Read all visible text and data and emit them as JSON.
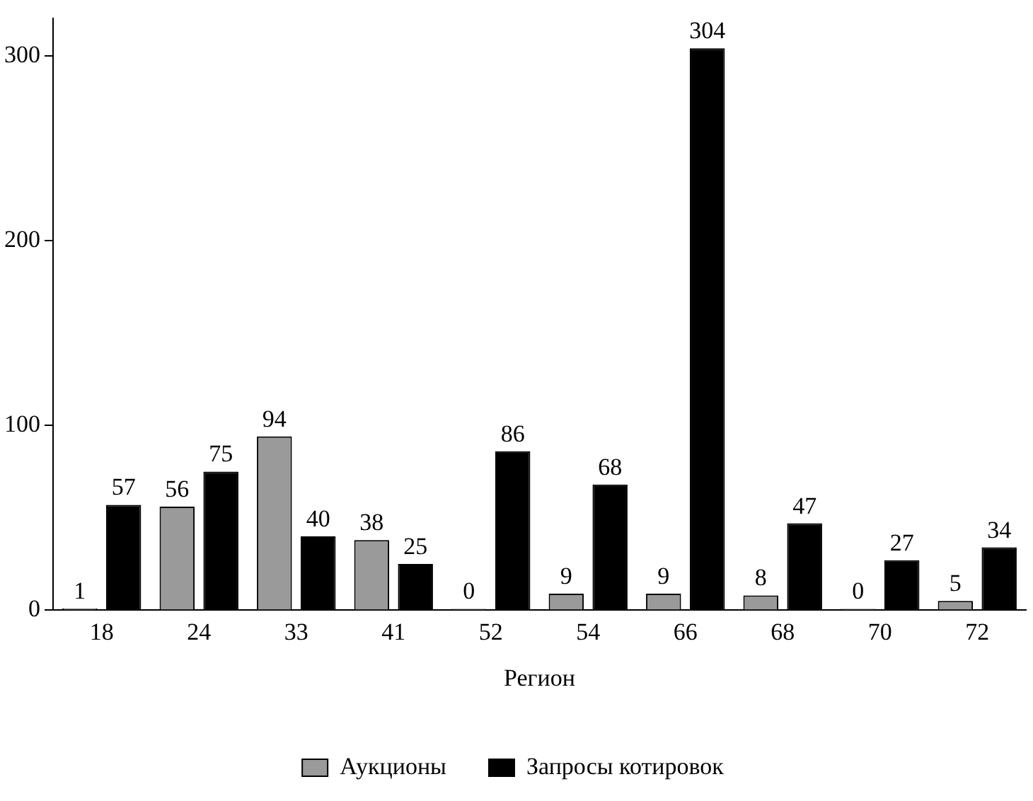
{
  "chart_data": {
    "type": "bar",
    "xlabel": "Регион",
    "categories": [
      "18",
      "24",
      "33",
      "41",
      "52",
      "54",
      "66",
      "68",
      "70",
      "72"
    ],
    "series": [
      {
        "name": "Аукционы",
        "color": "#9a9a9a",
        "values": [
          1,
          56,
          94,
          38,
          0,
          9,
          9,
          8,
          0,
          5
        ]
      },
      {
        "name": "Запросы котировок",
        "color": "#000000",
        "values": [
          57,
          75,
          40,
          25,
          86,
          68,
          304,
          47,
          27,
          34
        ]
      }
    ],
    "ylim": [
      0,
      320
    ],
    "yticks": [
      0,
      100,
      200,
      300
    ],
    "grid": false,
    "legend": "bottom",
    "data_labels": true
  }
}
